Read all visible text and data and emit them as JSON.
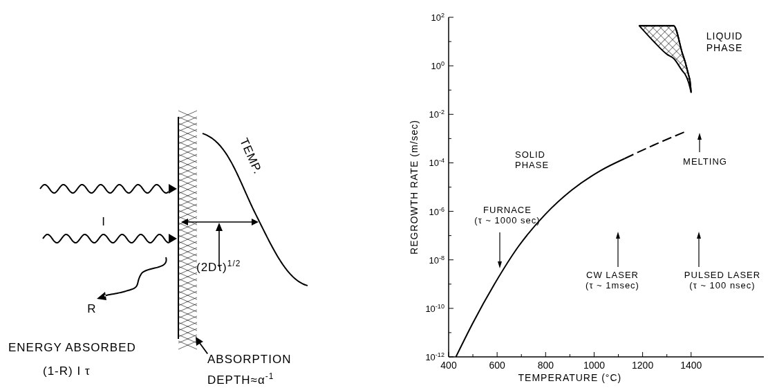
{
  "chart_data": [
    {
      "type": "other",
      "annotations": [
        "I",
        "TEMP.",
        "(2Dτ)$^{1/2}$",
        "R",
        "ENERGY ABSORBED",
        "(1-R) I τ",
        "ABSORPTION\nDEPTH≈α$^{-1}$"
      ]
    },
    {
      "type": "line",
      "xlabel": "TEMPERATURE (°C)",
      "ylabel": "REGROWTH RATE (m/sec)",
      "log": "y",
      "xlim": [
        400,
        1700
      ],
      "ylim": [
        1e-12,
        100
      ],
      "xticks": [
        400,
        {
          "value": 500,
          "label": null
        },
        600,
        {
          "value": 700,
          "label": null
        },
        800,
        {
          "value": 900,
          "label": null
        },
        1000,
        {
          "value": 1100,
          "label": null
        },
        1200,
        {
          "value": 1300,
          "label": null
        },
        1400
      ],
      "yticks": [
        {
          "value": 1e-12,
          "label": "10$^{-12}$"
        },
        {
          "value": 1e-11,
          "label": null
        },
        {
          "value": 1e-10,
          "label": "10$^{-10}$"
        },
        {
          "value": 1e-09,
          "label": null
        },
        {
          "value": 1e-08,
          "label": "10$^{-8}$"
        },
        {
          "value": 1e-07,
          "label": null
        },
        {
          "value": 1e-06,
          "label": "10$^{-6}$"
        },
        {
          "value": 1e-05,
          "label": null
        },
        {
          "value": 0.0001,
          "label": "10$^{-4}$"
        },
        {
          "value": 0.001,
          "label": null
        },
        {
          "value": 0.01,
          "label": "10$^{-2}$"
        },
        {
          "value": 0.1,
          "label": null
        },
        {
          "value": 1,
          "label": "10$^{0}$"
        },
        {
          "value": 10,
          "label": null
        },
        {
          "value": 100,
          "label": "10$^{2}$"
        }
      ],
      "series": [
        {
          "type": "line",
          "line_style": "solid",
          "color": "#000000",
          "x": [
            430,
            500,
            589,
            689,
            798,
            907,
            1027,
            1126
          ],
          "values": [
            1e-12,
            2.5e-11,
            1e-09,
            3.7e-08,
            7.4e-07,
            7.4e-06,
            4.8e-05,
            0.00015
          ]
        },
        {
          "type": "line",
          "line_style": "dashed",
          "color": "#000000",
          "x": [
            1126,
            1246,
            1380
          ],
          "values": [
            0.00015,
            0.00054,
            0.002
          ]
        },
        {
          "type": "line",
          "name": "LIQUID PHASE",
          "color": "#000000",
          "x": [
            1186,
            1246,
            1300,
            1328,
            1365,
            1375,
            1390,
            1395,
            1400
          ],
          "values": [
            45,
            45,
            45,
            45,
            3,
            1.5,
            0.4,
            0.25,
            0.08
          ],
          "upper": [
            45,
            45,
            45,
            45,
            3,
            1.5,
            0.4,
            0.25,
            0.08
          ],
          "lower": [
            45,
            10,
            3,
            2,
            0.6,
            0.45,
            0.2,
            0.13,
            0.08
          ]
        }
      ],
      "annotations": [
        "SOLID\nPHASE",
        "FURNACE\n(τ ~ 1000 sec)",
        "CW LASER\n(τ ~ 1msec)",
        "PULSED LASER\n(τ ~ 100 nsec)",
        "MELTING"
      ]
    }
  ]
}
